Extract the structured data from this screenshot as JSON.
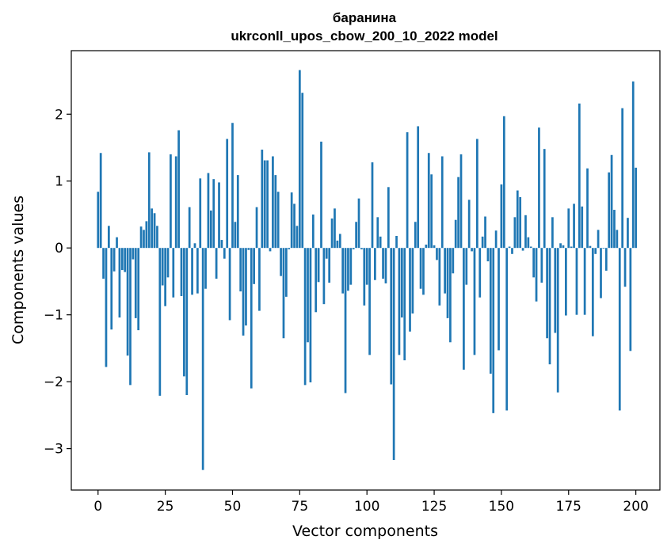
{
  "chart_data": {
    "type": "bar",
    "title_line1": "баранина",
    "title_line2": "ukrconll_upos_cbow_200_10_2022 model",
    "xlabel": "Vector components",
    "ylabel": "Components values",
    "xlim": [
      -9.95,
      208.95
    ],
    "ylim": [
      -3.62,
      2.95
    ],
    "xticks": [
      0,
      25,
      50,
      75,
      100,
      125,
      150,
      175,
      200
    ],
    "xtick_labels": [
      "0",
      "25",
      "50",
      "75",
      "100",
      "125",
      "150",
      "175",
      "200"
    ],
    "yticks": [
      -3,
      -2,
      -1,
      0,
      1,
      2
    ],
    "ytick_labels": [
      "−3",
      "−2",
      "−1",
      "0",
      "1",
      "2"
    ],
    "bar_color": "#1f77b4",
    "values": [
      0.84,
      1.42,
      -0.46,
      -1.78,
      0.33,
      -1.22,
      -0.35,
      0.16,
      -1.04,
      -0.33,
      -0.36,
      -1.61,
      -2.05,
      -0.17,
      -1.05,
      -1.23,
      0.32,
      0.27,
      0.4,
      1.43,
      0.59,
      0.52,
      0.33,
      -2.21,
      -0.56,
      -0.87,
      -0.44,
      1.4,
      -0.74,
      1.37,
      1.76,
      -0.72,
      -1.92,
      -2.2,
      0.61,
      -0.7,
      0.07,
      -0.68,
      1.04,
      -3.32,
      -0.61,
      1.12,
      0.56,
      1.03,
      -0.46,
      0.98,
      0.12,
      -0.16,
      1.63,
      -1.08,
      1.87,
      0.39,
      1.09,
      -0.65,
      -1.31,
      -1.16,
      -0.03,
      -2.1,
      -0.54,
      0.61,
      -0.94,
      1.47,
      1.31,
      1.31,
      -0.05,
      1.37,
      1.09,
      0.84,
      -0.42,
      -1.35,
      -0.73,
      -0.02,
      0.83,
      0.66,
      0.33,
      2.66,
      2.32,
      -2.05,
      -1.41,
      -2.01,
      0.5,
      -0.96,
      -0.51,
      1.59,
      -0.84,
      -0.16,
      -0.52,
      0.44,
      0.59,
      0.11,
      0.21,
      -0.68,
      -2.17,
      -0.64,
      -0.55,
      -0.02,
      0.39,
      0.74,
      -0.02,
      -0.86,
      -0.55,
      -1.6,
      1.28,
      -0.48,
      0.46,
      0.17,
      -0.46,
      -0.53,
      0.91,
      -2.04,
      -3.17,
      0.18,
      -1.6,
      -1.04,
      -1.68,
      1.73,
      -1.25,
      -0.98,
      0.39,
      1.82,
      -0.61,
      -0.7,
      0.05,
      1.42,
      1.1,
      0.04,
      -0.18,
      -0.86,
      1.37,
      -0.68,
      -1.05,
      -1.41,
      -0.38,
      0.42,
      1.06,
      1.4,
      -1.82,
      -0.55,
      0.72,
      -0.05,
      -1.6,
      1.63,
      -0.74,
      0.17,
      0.47,
      -0.2,
      -1.88,
      -2.47,
      0.26,
      -1.53,
      0.95,
      1.97,
      -2.43,
      0.02,
      -0.09,
      0.46,
      0.86,
      0.76,
      -0.04,
      0.49,
      0.16,
      0.02,
      -0.44,
      -0.8,
      1.8,
      -0.52,
      1.48,
      -1.35,
      -1.74,
      0.46,
      -1.27,
      -2.16,
      0.07,
      0.04,
      -1.01,
      0.59,
      0.02,
      0.66,
      -1.0,
      2.16,
      0.62,
      -1.0,
      1.19,
      0.03,
      -1.32,
      -0.09,
      0.27,
      -0.75,
      -0.01,
      -0.34,
      1.13,
      1.39,
      0.57,
      0.27,
      -2.43,
      2.09,
      -0.58,
      0.45,
      -1.54,
      2.49,
      1.2
    ]
  }
}
